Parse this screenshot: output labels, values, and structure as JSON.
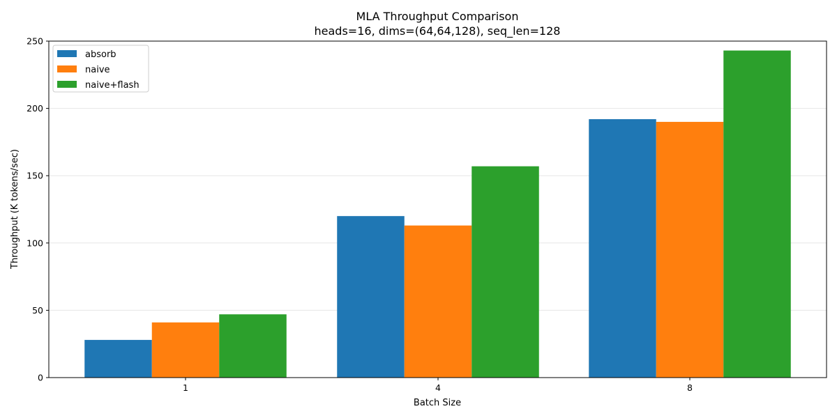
{
  "chart_data": {
    "type": "bar",
    "title": "MLA Throughput Comparison",
    "subtitle": "heads=16, dims=(64,64,128), seq_len=128",
    "xlabel": "Batch Size",
    "ylabel": "Throughput (K tokens/sec)",
    "categories": [
      "1",
      "4",
      "8"
    ],
    "series": [
      {
        "name": "absorb",
        "color": "#1f77b4",
        "values": [
          28,
          120,
          192
        ]
      },
      {
        "name": "naive",
        "color": "#ff7f0e",
        "values": [
          41,
          113,
          190
        ]
      },
      {
        "name": "naive+flash",
        "color": "#2ca02c",
        "values": [
          47,
          157,
          243
        ]
      }
    ],
    "ylim": [
      0,
      250
    ],
    "yticks": [
      0,
      50,
      100,
      150,
      200,
      250
    ],
    "grid": "y",
    "legend_position": "top-left"
  }
}
